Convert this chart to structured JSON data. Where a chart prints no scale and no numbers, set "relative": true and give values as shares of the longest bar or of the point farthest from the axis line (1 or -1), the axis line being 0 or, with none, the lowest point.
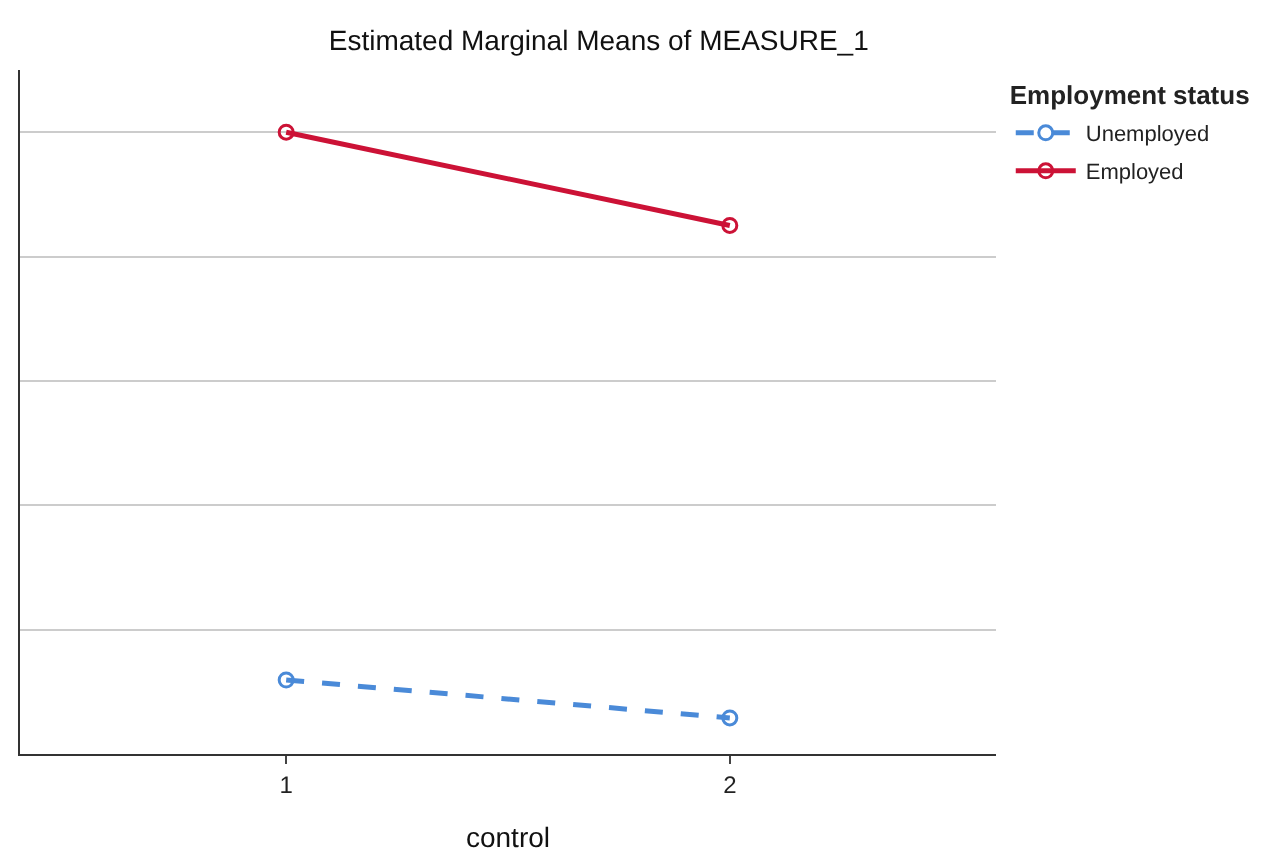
{
  "chart_data": {
    "type": "line",
    "title": "Estimated Marginal Means of MEASURE_1",
    "xlabel": "control",
    "legend_title": "Employment status",
    "categories": [
      "1",
      "2"
    ],
    "relative": true,
    "grid": "y",
    "legend": "top right",
    "marker": "circle",
    "tick_labels": "x",
    "series": [
      {
        "name": "Unemployed",
        "color": "#4a8ad8",
        "values": [
          0.119,
          0.058
        ],
        "line_style": "dashed"
      },
      {
        "name": "Employed",
        "color": "#cc1236",
        "values": [
          1,
          0.85
        ],
        "line_style": "solid"
      }
    ]
  }
}
